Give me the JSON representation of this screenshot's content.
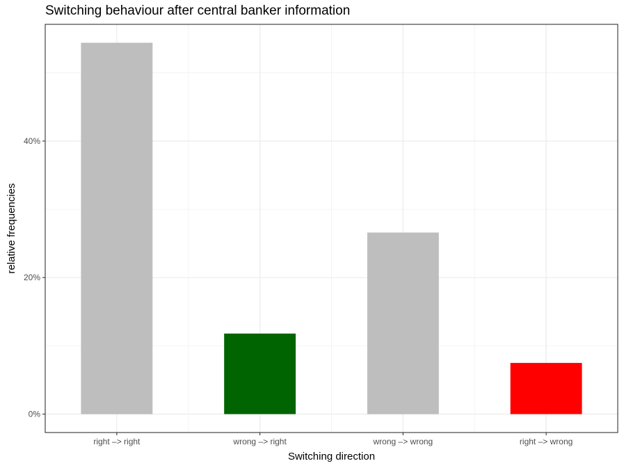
{
  "chart_data": {
    "type": "bar",
    "title": "Switching behaviour after central banker information",
    "xlabel": "Switching direction",
    "ylabel": "relative frequencies",
    "categories": [
      "right –> right",
      "wrong –> right",
      "wrong –> wrong",
      "right –> wrong"
    ],
    "values": [
      0.544,
      0.118,
      0.266,
      0.075
    ],
    "colors": [
      "#BEBEBE",
      "#006400",
      "#BEBEBE",
      "#FF0000"
    ],
    "ylim": [
      -0.027,
      0.571
    ],
    "yticks": [
      0,
      0.2,
      0.4
    ],
    "ytick_labels": [
      "0%",
      "20%",
      "40%"
    ],
    "yminor": [
      0.1,
      0.3,
      0.5
    ],
    "grid": true,
    "legend": "none"
  }
}
